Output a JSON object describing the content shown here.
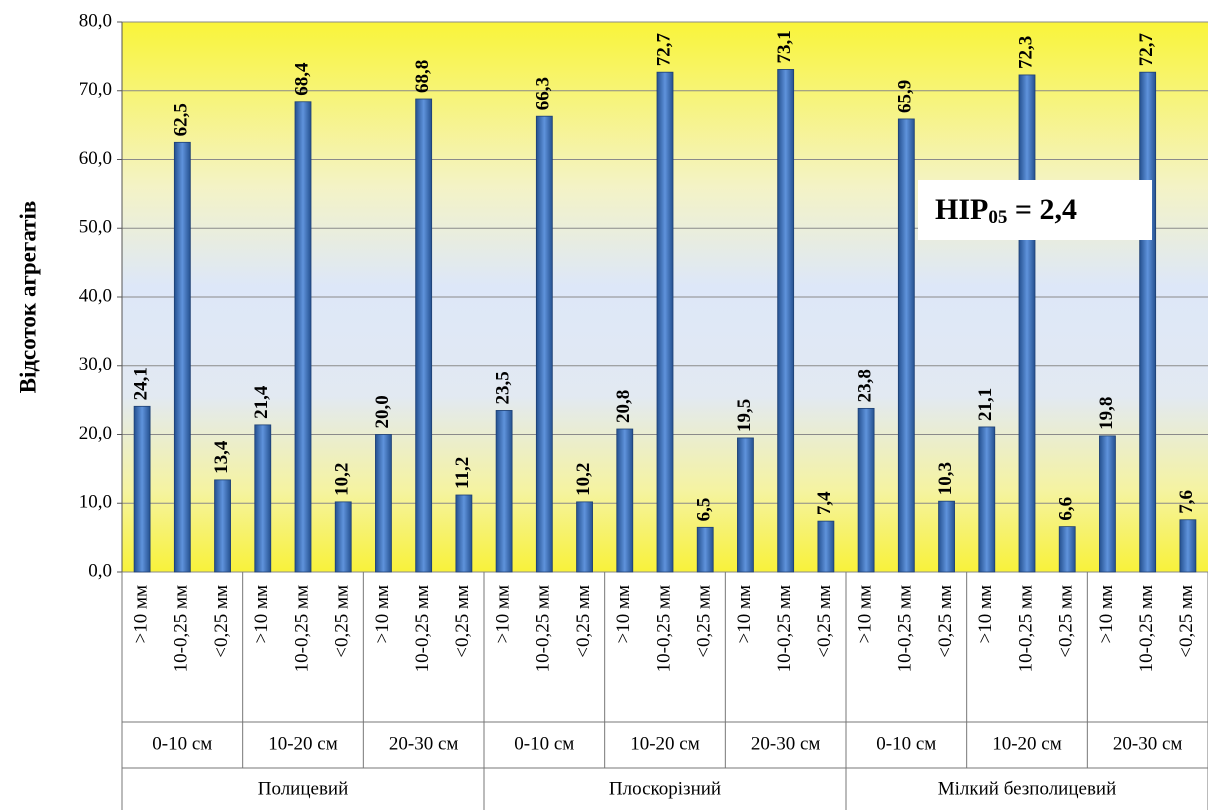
{
  "chart_data": {
    "type": "bar",
    "y_label": "Відсоток агрегатів",
    "annotation": {
      "main": "НІР",
      "subscript": "05",
      "tail": " = 2,4"
    },
    "categories": [
      ">10 мм",
      "10-0,25 мм",
      "<0,25 мм",
      ">10 мм",
      "10-0,25 мм",
      "<0,25 мм",
      ">10 мм",
      "10-0,25 мм",
      "<0,25 мм",
      ">10 мм",
      "10-0,25 мм",
      "<0,25 мм",
      ">10 мм",
      "10-0,25 мм",
      "<0,25 мм",
      ">10 мм",
      "10-0,25 мм",
      "<0,25 мм",
      ">10 мм",
      "10-0,25 мм",
      "<0,25 мм",
      ">10 мм",
      "10-0,25 мм",
      "<0,25 мм",
      ">10 мм",
      "10-0,25 мм",
      "<0,25 мм"
    ],
    "groups": [
      {
        "name": "Полицевий",
        "subgroups": [
          "0-10 см",
          "10-20 см",
          "20-30 см"
        ]
      },
      {
        "name": "Плоскорізний",
        "subgroups": [
          "0-10 см",
          "10-20 см",
          "20-30 см"
        ]
      },
      {
        "name": "Мілкий безполицевий",
        "subgroups": [
          "0-10 см",
          "10-20 см",
          "20-30 см"
        ]
      }
    ],
    "values": [
      24.1,
      62.5,
      13.4,
      21.4,
      68.4,
      10.2,
      20.0,
      68.8,
      11.2,
      23.5,
      66.3,
      10.2,
      20.8,
      72.7,
      6.5,
      19.5,
      73.1,
      7.4,
      23.8,
      65.9,
      10.3,
      21.1,
      72.3,
      6.6,
      19.8,
      72.7,
      7.6
    ],
    "value_labels": [
      "24,1",
      "62,5",
      "13,4",
      "21,4",
      "68,4",
      "10,2",
      "20,0",
      "68,8",
      "11,2",
      "23,5",
      "66,3",
      "10,2",
      "20,8",
      "72,7",
      "6,5",
      "19,5",
      "73,1",
      "7,4",
      "23,8",
      "65,9",
      "10,3",
      "21,1",
      "72,3",
      "6,6",
      "19,8",
      "72,7",
      "7,6"
    ],
    "color": "#3a6db8",
    "ylim": [
      0,
      80
    ],
    "yticks": [
      {
        "value": 0,
        "label": "0,0"
      },
      {
        "value": 10,
        "label": "10,0"
      },
      {
        "value": 20,
        "label": "20,0"
      },
      {
        "value": 30,
        "label": "30,0"
      },
      {
        "value": 40,
        "label": "40,0"
      },
      {
        "value": 50,
        "label": "50,0"
      },
      {
        "value": 60,
        "label": "60,0"
      },
      {
        "value": 70,
        "label": "70,0"
      },
      {
        "value": 80,
        "label": "80,0"
      }
    ],
    "grid": true
  }
}
